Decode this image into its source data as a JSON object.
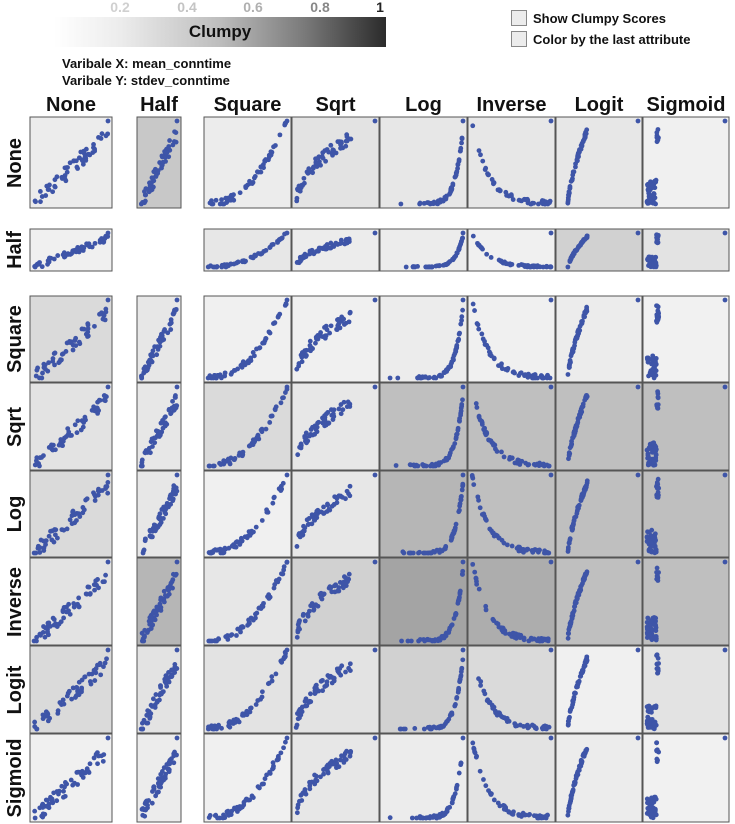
{
  "colorbar": {
    "title": "Clumpy",
    "ticks": [
      {
        "label": "0.2",
        "value": 0.2
      },
      {
        "label": "0.4",
        "value": 0.4
      },
      {
        "label": "0.6",
        "value": 0.6
      },
      {
        "label": "0.8",
        "value": 0.8
      },
      {
        "label": "1",
        "value": 1.0
      }
    ]
  },
  "variables": {
    "x_label": "Varibale X: mean_conntime",
    "y_label": "Varibale Y: stdev_conntime"
  },
  "options": {
    "show_clumpy": "Show Clumpy Scores",
    "color_by_last": "Color by the last attribute"
  },
  "colors": {
    "points": "#3e55a8",
    "cell_border": "#555555"
  },
  "chart_data": {
    "type": "scatter",
    "columns": [
      "None",
      "Half",
      "Square",
      "Sqrt",
      "Log",
      "Inverse",
      "Logit",
      "Sigmoid"
    ],
    "rows": [
      "None",
      "Half",
      "Square",
      "Sqrt",
      "Log",
      "Inverse",
      "Logit",
      "Sigmoid"
    ],
    "clumpy_scores": [
      [
        0.05,
        0.25,
        0.05,
        0.1,
        0.08,
        0.08,
        0.08,
        0.03
      ],
      [
        0.03,
        null,
        0.08,
        0.05,
        0.05,
        0.03,
        0.2,
        0.1
      ],
      [
        0.15,
        0.08,
        0.03,
        0.03,
        0.05,
        0.03,
        0.05,
        0.02
      ],
      [
        0.1,
        0.08,
        0.15,
        0.08,
        0.3,
        0.3,
        0.3,
        0.3
      ],
      [
        0.15,
        0.08,
        0.03,
        0.08,
        0.35,
        0.3,
        0.3,
        0.3
      ],
      [
        0.1,
        0.35,
        0.08,
        0.2,
        0.45,
        0.4,
        0.3,
        0.3
      ],
      [
        0.15,
        0.1,
        0.1,
        0.1,
        0.2,
        0.15,
        0.03,
        0.1
      ],
      [
        0.03,
        0.05,
        0.03,
        0.08,
        0.05,
        0.1,
        0.05,
        0.02
      ]
    ],
    "patterns": {
      "None": "linear",
      "Half": "linear",
      "Square": "convex",
      "Sqrt": "concave",
      "Log": "log",
      "Inverse": "inverse",
      "Logit": "logit",
      "Sigmoid": "sigmoid"
    }
  }
}
